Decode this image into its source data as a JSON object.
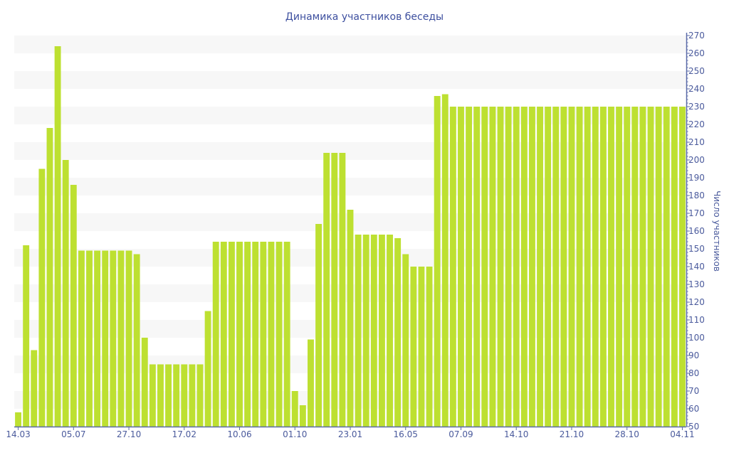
{
  "chart_data": {
    "type": "bar",
    "title": "Динамика участников беседы",
    "xlabel": "",
    "ylabel": "Число участников",
    "ylim": [
      50,
      270
    ],
    "ytick_step": 10,
    "y_axis_side": "right",
    "grid": "alternating horizontal bands",
    "bar_color": "#bde031",
    "band_color": "#f7f7f7",
    "text_color": "#4a5a9c",
    "x_tick_labels": [
      {
        "bar": 1,
        "label": "14.03"
      },
      {
        "bar": 8,
        "label": "05.07"
      },
      {
        "bar": 15,
        "label": "27.10"
      },
      {
        "bar": 22,
        "label": "17.02"
      },
      {
        "bar": 29,
        "label": "10.06"
      },
      {
        "bar": 36,
        "label": "01.10"
      },
      {
        "bar": 43,
        "label": "23.01"
      },
      {
        "bar": 50,
        "label": "16.05"
      },
      {
        "bar": 57,
        "label": "07.09"
      },
      {
        "bar": 64,
        "label": "14.10"
      },
      {
        "bar": 71,
        "label": "21.10"
      },
      {
        "bar": 78,
        "label": "28.10"
      },
      {
        "bar": 85,
        "label": "04.11"
      }
    ],
    "values": [
      58,
      152,
      93,
      195,
      218,
      264,
      200,
      186,
      149,
      149,
      149,
      149,
      149,
      149,
      149,
      147,
      100,
      85,
      85,
      85,
      85,
      85,
      85,
      85,
      115,
      154,
      154,
      154,
      154,
      154,
      154,
      154,
      154,
      154,
      154,
      70,
      62,
      99,
      164,
      204,
      204,
      204,
      172,
      158,
      158,
      158,
      158,
      158,
      156,
      147,
      140,
      140,
      140,
      236,
      237,
      230,
      230,
      230,
      230,
      230,
      230,
      230,
      230,
      230,
      230,
      230,
      230,
      230,
      230,
      230,
      230,
      230,
      230,
      230,
      230,
      230,
      230,
      230,
      230,
      230,
      230,
      230,
      230,
      230,
      230
    ]
  }
}
